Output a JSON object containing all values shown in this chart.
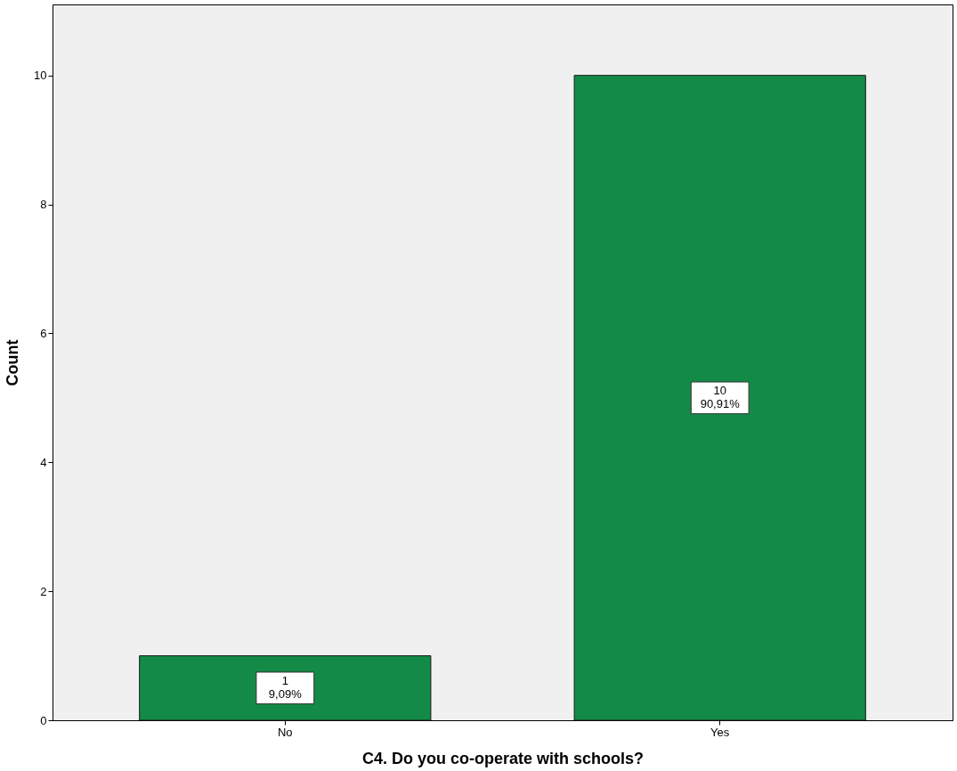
{
  "chart_data": {
    "type": "bar",
    "xlabel": "C4. Do you co-operate with schools?",
    "ylabel": "Count",
    "categories": [
      "No",
      "Yes"
    ],
    "values": [
      1,
      10
    ],
    "color": "#138b47",
    "value_labels": [
      "1\n9,09%",
      "10\n90,91%"
    ],
    "ylim": [
      0,
      11.1
    ],
    "yticks": [
      0,
      2,
      4,
      6,
      8,
      10
    ],
    "grid": false
  }
}
